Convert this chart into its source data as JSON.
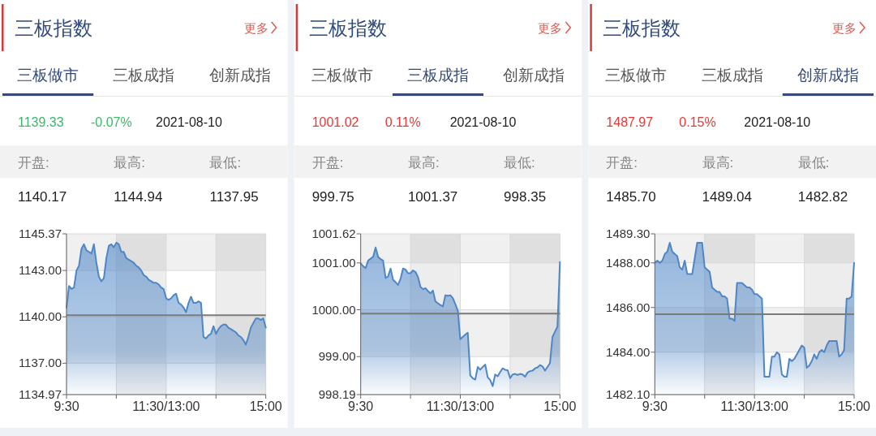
{
  "chart_data": [
    {
      "type": "area",
      "title": "三板指数",
      "annotations": [
        "更多",
        "三板做市",
        "三板成指",
        "创新成指",
        "1139.33",
        "-0.07%",
        "2021-08-10",
        "开盘:",
        "最高:",
        "最低:",
        "1140.17",
        "1144.94",
        "1137.95"
      ],
      "color": "#4f86c6",
      "grid": true,
      "categories": [
        "9:30",
        null,
        null,
        null,
        null,
        null,
        null,
        null,
        null,
        null,
        null,
        null,
        null,
        null,
        null,
        null,
        null,
        null,
        null,
        null,
        null,
        null,
        null,
        null,
        null,
        null,
        null,
        null,
        null,
        null,
        null,
        null,
        null,
        null,
        null,
        null,
        null,
        null,
        null,
        null,
        "11:30/13:00",
        null,
        null,
        null,
        null,
        null,
        null,
        null,
        null,
        null,
        null,
        null,
        null,
        null,
        null,
        null,
        null,
        null,
        null,
        null,
        null,
        null,
        null,
        null,
        null,
        null,
        null,
        null,
        null,
        null,
        null,
        null,
        null,
        null,
        null,
        null,
        null,
        null,
        null,
        null,
        "15:00"
      ],
      "values": [
        1140.6,
        1142.0,
        1141.8,
        1141.9,
        1143.0,
        1143.3,
        1144.4,
        1144.7,
        1144.3,
        1144.2,
        1144.1,
        1144.7,
        1143.5,
        1142.6,
        1142.3,
        1142.5,
        1143.8,
        1144.6,
        1144.7,
        1144.5,
        1144.8,
        1144.7,
        1144.2,
        1144.2,
        1143.8,
        1143.7,
        1143.6,
        1143.5,
        1143.3,
        1143.2,
        1143.0,
        1142.7,
        1142.6,
        1142.4,
        1142.3,
        1142.2,
        1142.2,
        1142.1,
        1141.9,
        1141.8,
        1141.2,
        1141.1,
        1141.2,
        1141.4,
        1141.5,
        1140.9,
        1140.8,
        1140.6,
        1140.3,
        1140.9,
        1141.3,
        1140.9,
        1140.9,
        1141.0,
        1140.9,
        1138.7,
        1138.6,
        1138.8,
        1138.9,
        1139.4,
        1138.9,
        1139.2,
        1139.4,
        1139.5,
        1139.5,
        1139.3,
        1139.2,
        1139.1,
        1139.0,
        1138.8,
        1138.7,
        1138.5,
        1138.2,
        1138.7,
        1139.3,
        1139.6,
        1139.9,
        1139.9,
        1139.8,
        1139.9,
        1139.3
      ],
      "ylim": [
        1134.97,
        1145.37
      ],
      "yticks": [
        1145.37,
        {
          "value": 1143,
          "label": "1143.00"
        },
        {
          "value": 1140,
          "label": "1140.00"
        },
        {
          "value": 1137,
          "label": "1137.00"
        },
        1134.97
      ],
      "ref_lines": [
        {
          "axis": "y",
          "value": 1140.1,
          "color": "#7a7a7a"
        }
      ]
    },
    {
      "type": "area",
      "title": "三板指数",
      "annotations": [
        "更多",
        "三板做市",
        "三板成指",
        "创新成指",
        "1001.02",
        "0.11%",
        "2021-08-10",
        "开盘:",
        "最高:",
        "最低:",
        "999.75",
        "1001.37",
        "998.35"
      ],
      "color": "#4f86c6",
      "grid": true,
      "categories": [
        "9:30",
        null,
        null,
        null,
        null,
        null,
        null,
        null,
        null,
        null,
        null,
        null,
        null,
        null,
        null,
        null,
        null,
        null,
        null,
        null,
        null,
        null,
        null,
        null,
        null,
        null,
        null,
        null,
        null,
        null,
        null,
        null,
        null,
        null,
        null,
        null,
        null,
        null,
        null,
        null,
        "11:30/13:00",
        null,
        null,
        null,
        null,
        null,
        null,
        null,
        null,
        null,
        null,
        null,
        null,
        null,
        null,
        null,
        null,
        null,
        null,
        null,
        null,
        null,
        null,
        null,
        null,
        null,
        null,
        null,
        null,
        null,
        null,
        null,
        null,
        null,
        null,
        null,
        null,
        null,
        null,
        null,
        "15:00"
      ],
      "values": [
        1000.99,
        1000.93,
        1000.89,
        1001.05,
        1001.09,
        1001.13,
        1001.33,
        1001.13,
        1001.08,
        1001.05,
        1000.68,
        1000.71,
        1000.88,
        1000.64,
        1000.59,
        1000.53,
        1000.66,
        1000.88,
        1000.86,
        1000.78,
        1000.78,
        1000.84,
        1000.81,
        1000.7,
        1000.49,
        1000.44,
        1000.46,
        1000.4,
        1000.35,
        1000.41,
        1000.18,
        1000.14,
        1000.1,
        1000.07,
        1000.31,
        1000.3,
        1000.31,
        1000.25,
        1000.12,
        999.98,
        999.37,
        999.42,
        999.47,
        999.51,
        998.6,
        998.54,
        998.51,
        998.78,
        998.72,
        998.78,
        998.83,
        998.56,
        998.5,
        998.37,
        998.62,
        998.58,
        998.67,
        998.75,
        998.72,
        998.71,
        998.54,
        998.62,
        998.63,
        998.61,
        998.63,
        998.62,
        998.57,
        998.66,
        998.69,
        998.7,
        998.75,
        998.77,
        998.82,
        998.79,
        998.7,
        998.78,
        998.86,
        999.42,
        999.53,
        999.64,
        1001.02
      ],
      "ylim": [
        998.19,
        1001.62
      ],
      "yticks": [
        1001.62,
        {
          "value": 1001,
          "label": "1001.00"
        },
        {
          "value": 1000,
          "label": "1000.00"
        },
        {
          "value": 999,
          "label": "999.00"
        },
        998.19
      ],
      "ref_lines": [
        {
          "axis": "y",
          "value": 999.92,
          "color": "#7a7a7a"
        }
      ]
    },
    {
      "type": "area",
      "title": "三板指数",
      "annotations": [
        "更多",
        "三板做市",
        "三板成指",
        "创新成指",
        "1487.97",
        "0.15%",
        "2021-08-10",
        "开盘:",
        "最高:",
        "最低:",
        "1485.70",
        "1489.04",
        "1482.82"
      ],
      "color": "#4f86c6",
      "grid": true,
      "categories": [
        "9:30",
        null,
        null,
        null,
        null,
        null,
        null,
        null,
        null,
        null,
        null,
        null,
        null,
        null,
        null,
        null,
        null,
        null,
        null,
        null,
        null,
        null,
        null,
        null,
        null,
        null,
        null,
        null,
        null,
        null,
        null,
        null,
        null,
        null,
        null,
        null,
        null,
        null,
        null,
        null,
        "11:30/13:00",
        null,
        null,
        null,
        null,
        null,
        null,
        null,
        null,
        null,
        null,
        null,
        null,
        null,
        null,
        null,
        null,
        null,
        null,
        null,
        null,
        null,
        null,
        null,
        null,
        null,
        null,
        null,
        null,
        null,
        null,
        null,
        null,
        null,
        null,
        null,
        null,
        null,
        null,
        null,
        "15:00"
      ],
      "values": [
        1488.0,
        1488.1,
        1488.0,
        1488.1,
        1488.4,
        1488.5,
        1488.9,
        1488.5,
        1488.4,
        1488.3,
        1487.8,
        1487.7,
        1488.1,
        1487.5,
        1487.5,
        1487.5,
        1488.2,
        1488.9,
        1488.9,
        1488.9,
        1487.8,
        1487.7,
        1487.6,
        1486.9,
        1486.8,
        1486.7,
        1486.7,
        1486.5,
        1486.5,
        1486.4,
        1485.5,
        1485.5,
        1485.4,
        1487.1,
        1487.1,
        1487.1,
        1487.0,
        1486.9,
        1486.9,
        1486.8,
        1486.6,
        1486.6,
        1486.5,
        1486.4,
        1482.9,
        1482.9,
        1482.9,
        1483.8,
        1483.8,
        1484.0,
        1483.9,
        1483.0,
        1482.9,
        1482.9,
        1483.7,
        1483.6,
        1483.7,
        1483.9,
        1484.1,
        1484.3,
        1484.2,
        1483.3,
        1483.4,
        1483.6,
        1483.9,
        1483.7,
        1484.0,
        1484.1,
        1484.0,
        1484.3,
        1484.5,
        1484.5,
        1484.5,
        1484.5,
        1483.8,
        1483.9,
        1484.1,
        1486.4,
        1486.4,
        1486.5,
        1488.0
      ],
      "ylim": [
        1482.1,
        1489.3
      ],
      "yticks": [
        {
          "value": 1489.3,
          "label": "1489.30"
        },
        {
          "value": 1488,
          "label": "1488.00"
        },
        {
          "value": 1486,
          "label": "1486.00"
        },
        {
          "value": 1484,
          "label": "1484.00"
        },
        {
          "value": 1482.1,
          "label": "1482.10"
        }
      ],
      "ref_lines": [
        {
          "axis": "y",
          "value": 1485.7,
          "color": "#7a7a7a"
        }
      ]
    }
  ]
}
